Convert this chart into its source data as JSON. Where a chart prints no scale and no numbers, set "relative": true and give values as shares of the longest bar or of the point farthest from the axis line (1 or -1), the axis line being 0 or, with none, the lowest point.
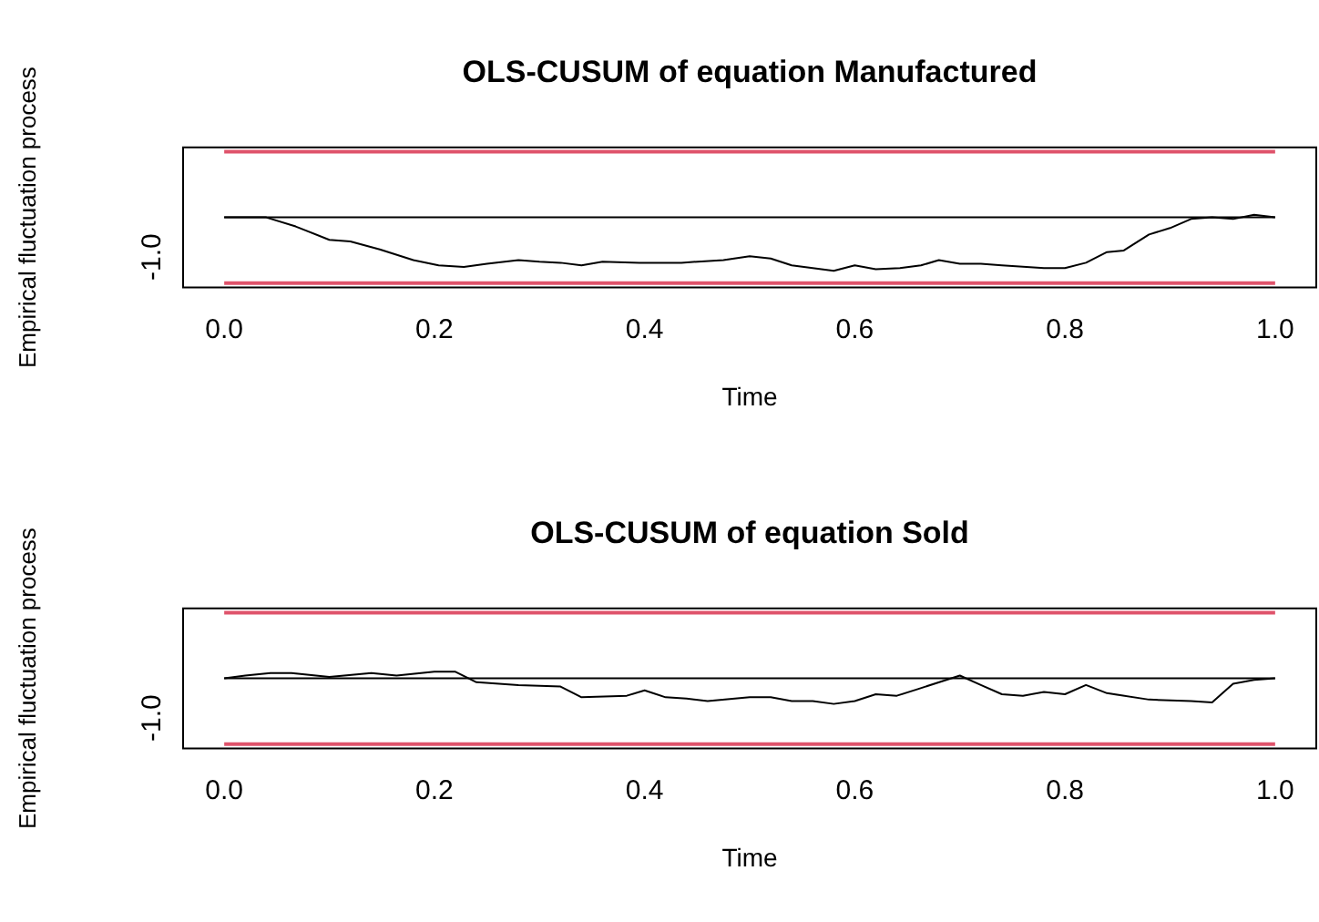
{
  "chart_data": [
    {
      "type": "line",
      "title": "OLS-CUSUM of equation Manufactured",
      "xlabel": "Time",
      "ylabel": "Empirical fluctuation process",
      "grid": false,
      "legend": false,
      "marker": "none",
      "line_style": "solid",
      "relative": true,
      "annotations": [
        "-1.0"
      ],
      "xlim": [
        -0.04,
        1.04
      ],
      "xticks": [
        {
          "value": 0,
          "label": "0.0"
        },
        {
          "value": 0.2,
          "label": "0.2"
        },
        {
          "value": 0.4,
          "label": "0.4"
        },
        {
          "value": 0.6,
          "label": "0.6"
        },
        {
          "value": 0.8,
          "label": "0.8"
        },
        {
          "value": 1,
          "label": "1.0"
        }
      ],
      "ref_lines": [
        {
          "axis": "y",
          "value": 1.23,
          "color": "#df536b"
        },
        {
          "axis": "y",
          "value": -1.23,
          "color": "#df536b"
        },
        {
          "axis": "y",
          "value": 0,
          "color": "#000000"
        }
      ],
      "series": [
        {
          "color": "#000000",
          "x": [
            0,
            0.04,
            0.068,
            0.1,
            0.12,
            0.148,
            0.18,
            0.204,
            0.228,
            0.25,
            0.28,
            0.3,
            0.32,
            0.34,
            0.36,
            0.395,
            0.435,
            0.475,
            0.5,
            0.52,
            0.54,
            0.58,
            0.6,
            0.62,
            0.643,
            0.663,
            0.68,
            0.7,
            0.72,
            0.74,
            0.78,
            0.8,
            0.82,
            0.84,
            0.856,
            0.88,
            0.9,
            0.92,
            0.94,
            0.96,
            0.98,
            1
          ],
          "values": [
            0,
            0,
            -0.17,
            -0.42,
            -0.45,
            -0.6,
            -0.8,
            -0.9,
            -0.93,
            -0.87,
            -0.8,
            -0.83,
            -0.85,
            -0.9,
            -0.83,
            -0.85,
            -0.85,
            -0.8,
            -0.73,
            -0.77,
            -0.9,
            -1,
            -0.9,
            -0.97,
            -0.95,
            -0.9,
            -0.8,
            -0.87,
            -0.87,
            -0.9,
            -0.95,
            -0.95,
            -0.85,
            -0.65,
            -0.62,
            -0.32,
            -0.2,
            -0.03,
            0,
            -0.03,
            0.05,
            0
          ]
        }
      ]
    },
    {
      "type": "line",
      "title": "OLS-CUSUM of equation Sold",
      "xlabel": "Time",
      "ylabel": "Empirical fluctuation process",
      "grid": false,
      "legend": false,
      "marker": "none",
      "line_style": "solid",
      "relative": true,
      "annotations": [
        "-1.0"
      ],
      "xlim": [
        -0.04,
        1.04
      ],
      "xticks": [
        {
          "value": 0,
          "label": "0.0"
        },
        {
          "value": 0.2,
          "label": "0.2"
        },
        {
          "value": 0.4,
          "label": "0.4"
        },
        {
          "value": 0.6,
          "label": "0.6"
        },
        {
          "value": 0.8,
          "label": "0.8"
        },
        {
          "value": 1,
          "label": "1.0"
        }
      ],
      "ref_lines": [
        {
          "axis": "y",
          "value": 2.57,
          "color": "#df536b"
        },
        {
          "axis": "y",
          "value": -2.57,
          "color": "#df536b"
        },
        {
          "axis": "y",
          "value": 0,
          "color": "#000000"
        }
      ],
      "series": [
        {
          "color": "#000000",
          "x": [
            0,
            0.02,
            0.044,
            0.064,
            0.1,
            0.14,
            0.164,
            0.2,
            0.22,
            0.24,
            0.28,
            0.32,
            0.34,
            0.383,
            0.4,
            0.42,
            0.44,
            0.46,
            0.5,
            0.52,
            0.54,
            0.56,
            0.58,
            0.6,
            0.62,
            0.64,
            0.66,
            0.7,
            0.72,
            0.74,
            0.76,
            0.78,
            0.8,
            0.82,
            0.84,
            0.88,
            0.92,
            0.94,
            0.96,
            0.98,
            1
          ],
          "values": [
            0,
            0.11,
            0.21,
            0.21,
            0.06,
            0.21,
            0.11,
            0.26,
            0.26,
            -0.15,
            -0.26,
            -0.32,
            -0.74,
            -0.68,
            -0.47,
            -0.74,
            -0.79,
            -0.89,
            -0.74,
            -0.74,
            -0.89,
            -0.89,
            -1,
            -0.89,
            -0.62,
            -0.68,
            -0.42,
            0.11,
            -0.26,
            -0.62,
            -0.68,
            -0.53,
            -0.62,
            -0.26,
            -0.58,
            -0.83,
            -0.89,
            -0.94,
            -0.21,
            -0.06,
            0
          ]
        }
      ]
    }
  ]
}
